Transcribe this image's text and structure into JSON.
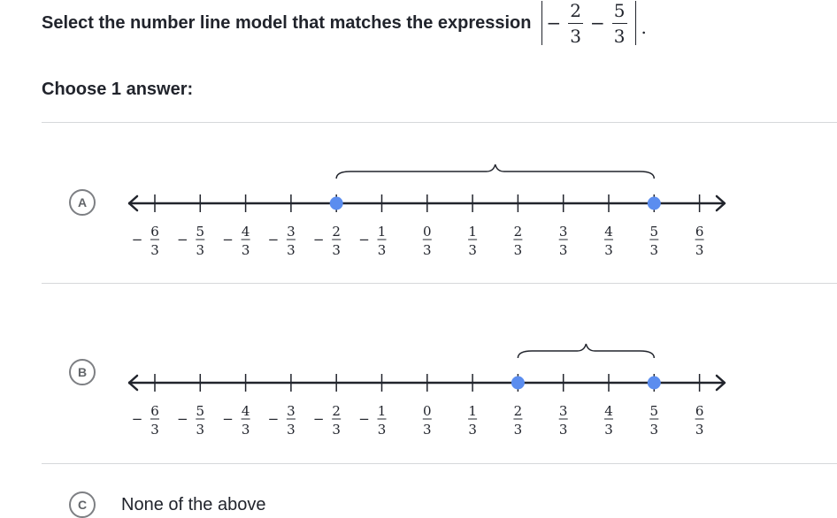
{
  "question": {
    "prompt": "Select the number line model that matches the expression",
    "expression": {
      "term1": {
        "sign": "−",
        "numerator": "2",
        "denominator": "3"
      },
      "operator": "−",
      "term2": {
        "numerator": "5",
        "denominator": "3"
      },
      "trailing": "."
    }
  },
  "choose_label": "Choose 1 answer:",
  "tick_labels": [
    {
      "sign": "−",
      "num": "6",
      "den": "3",
      "value": -6
    },
    {
      "sign": "−",
      "num": "5",
      "den": "3",
      "value": -5
    },
    {
      "sign": "−",
      "num": "4",
      "den": "3",
      "value": -4
    },
    {
      "sign": "−",
      "num": "3",
      "den": "3",
      "value": -3
    },
    {
      "sign": "−",
      "num": "2",
      "den": "3",
      "value": -2
    },
    {
      "sign": "−",
      "num": "1",
      "den": "3",
      "value": -1
    },
    {
      "sign": "",
      "num": "0",
      "den": "3",
      "value": 0
    },
    {
      "sign": "",
      "num": "1",
      "den": "3",
      "value": 1
    },
    {
      "sign": "",
      "num": "2",
      "den": "3",
      "value": 2
    },
    {
      "sign": "",
      "num": "3",
      "den": "3",
      "value": 3
    },
    {
      "sign": "",
      "num": "4",
      "den": "3",
      "value": 4
    },
    {
      "sign": "",
      "num": "5",
      "den": "3",
      "value": 5
    },
    {
      "sign": "",
      "num": "6",
      "den": "3",
      "value": 6
    }
  ],
  "choices": [
    {
      "letter": "A",
      "type": "numberline",
      "points": [
        -2,
        5
      ],
      "brace": [
        -2,
        5
      ]
    },
    {
      "letter": "B",
      "type": "numberline",
      "points": [
        2,
        5
      ],
      "brace": [
        2,
        5
      ]
    },
    {
      "letter": "C",
      "type": "text",
      "text": "None of the above"
    }
  ],
  "colors": {
    "point": "#5b8def",
    "line": "#21242c",
    "divider": "#d6d8da"
  }
}
